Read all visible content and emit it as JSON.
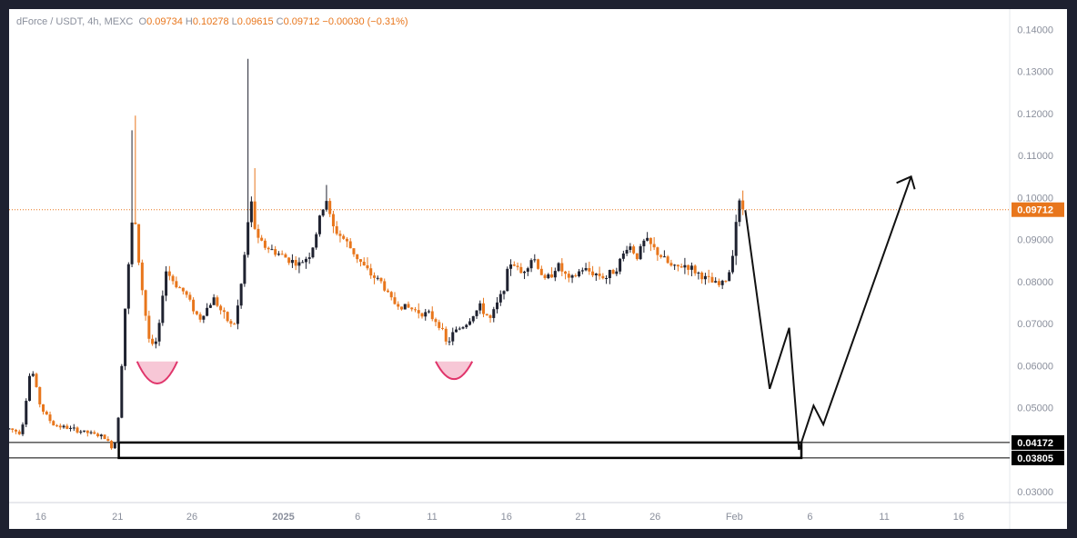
{
  "header": {
    "symbol": "dForce / USDT, 4h, MEXC",
    "o_label": "O",
    "o_value": "0.09734",
    "h_label": "H",
    "h_value": "0.10278",
    "l_label": "L",
    "l_value": "0.09615",
    "c_label": "C",
    "c_value": "0.09712",
    "change": "−0.00030 (−0.31%)"
  },
  "colors": {
    "up": "#1f2230",
    "down": "#e8761c",
    "current_line": "#e8761c",
    "arc": "#e0356b",
    "arc_fill": "#f7c7d6",
    "price_tag_current": "#e8761c",
    "price_tag_zone": "#000000",
    "axis_text": "#8a8f9c"
  },
  "chart_data": {
    "type": "candlestick",
    "title": "dForce / USDT, 4h, MEXC",
    "ylim": [
      0.027,
      0.145
    ],
    "y_ticks": [
      "0.14000",
      "0.13000",
      "0.12000",
      "0.11000",
      "0.10000",
      "0.09000",
      "0.08000",
      "0.07000",
      "0.06000",
      "0.05000",
      "0.03000"
    ],
    "x_ticks": [
      "16",
      "21",
      "26",
      "2025",
      "6",
      "11",
      "16",
      "21",
      "26",
      "Feb",
      "6",
      "11",
      "16"
    ],
    "current_price": "0.09712",
    "zone": {
      "top": "0.04172",
      "bottom": "0.03805"
    },
    "price_path": [
      {
        "d": 0,
        "p": 0.045
      },
      {
        "d": 1.0,
        "p": 0.044
      },
      {
        "d": 1.8,
        "p": 0.06
      },
      {
        "d": 2.6,
        "p": 0.05
      },
      {
        "d": 3.6,
        "p": 0.046
      },
      {
        "d": 5.0,
        "p": 0.045
      },
      {
        "d": 6.5,
        "p": 0.044
      },
      {
        "d": 7.8,
        "p": 0.043
      },
      {
        "d": 8.6,
        "p": 0.04
      },
      {
        "d": 9.0,
        "p": 0.049
      },
      {
        "d": 9.5,
        "p": 0.073
      },
      {
        "d": 10.2,
        "p": 0.098
      },
      {
        "d": 10.7,
        "p": 0.083
      },
      {
        "d": 11.2,
        "p": 0.072
      },
      {
        "d": 11.6,
        "p": 0.064
      },
      {
        "d": 12.2,
        "p": 0.066
      },
      {
        "d": 12.8,
        "p": 0.083
      },
      {
        "d": 13.5,
        "p": 0.08
      },
      {
        "d": 14.5,
        "p": 0.077
      },
      {
        "d": 15.6,
        "p": 0.071
      },
      {
        "d": 16.8,
        "p": 0.076
      },
      {
        "d": 17.6,
        "p": 0.072
      },
      {
        "d": 18.4,
        "p": 0.069
      },
      {
        "d": 18.9,
        "p": 0.076
      },
      {
        "d": 19.4,
        "p": 0.088
      },
      {
        "d": 19.8,
        "p": 0.1
      },
      {
        "d": 20.3,
        "p": 0.09
      },
      {
        "d": 21.2,
        "p": 0.088
      },
      {
        "d": 22.5,
        "p": 0.086
      },
      {
        "d": 23.8,
        "p": 0.084
      },
      {
        "d": 24.8,
        "p": 0.087
      },
      {
        "d": 25.5,
        "p": 0.095
      },
      {
        "d": 26.0,
        "p": 0.1
      },
      {
        "d": 26.5,
        "p": 0.093
      },
      {
        "d": 27.5,
        "p": 0.09
      },
      {
        "d": 28.5,
        "p": 0.086
      },
      {
        "d": 29.5,
        "p": 0.082
      },
      {
        "d": 30.5,
        "p": 0.08
      },
      {
        "d": 31.5,
        "p": 0.075
      },
      {
        "d": 32.5,
        "p": 0.074
      },
      {
        "d": 33.5,
        "p": 0.073
      },
      {
        "d": 34.5,
        "p": 0.072
      },
      {
        "d": 35.3,
        "p": 0.07
      },
      {
        "d": 35.9,
        "p": 0.065
      },
      {
        "d": 36.5,
        "p": 0.068
      },
      {
        "d": 37.5,
        "p": 0.07
      },
      {
        "d": 38.6,
        "p": 0.074
      },
      {
        "d": 39.5,
        "p": 0.071
      },
      {
        "d": 40.4,
        "p": 0.077
      },
      {
        "d": 41.2,
        "p": 0.085
      },
      {
        "d": 42.0,
        "p": 0.082
      },
      {
        "d": 43.0,
        "p": 0.086
      },
      {
        "d": 44.0,
        "p": 0.08
      },
      {
        "d": 45.0,
        "p": 0.084
      },
      {
        "d": 46.0,
        "p": 0.08
      },
      {
        "d": 47.0,
        "p": 0.083
      },
      {
        "d": 48.0,
        "p": 0.082
      },
      {
        "d": 49.0,
        "p": 0.081
      },
      {
        "d": 50.0,
        "p": 0.084
      },
      {
        "d": 50.8,
        "p": 0.089
      },
      {
        "d": 51.5,
        "p": 0.086
      },
      {
        "d": 52.2,
        "p": 0.09
      },
      {
        "d": 52.8,
        "p": 0.088
      },
      {
        "d": 53.5,
        "p": 0.086
      },
      {
        "d": 54.5,
        "p": 0.083
      },
      {
        "d": 55.5,
        "p": 0.084
      },
      {
        "d": 56.5,
        "p": 0.082
      },
      {
        "d": 57.5,
        "p": 0.08
      },
      {
        "d": 58.3,
        "p": 0.079
      },
      {
        "d": 59.0,
        "p": 0.081
      },
      {
        "d": 59.4,
        "p": 0.088
      },
      {
        "d": 59.8,
        "p": 0.099
      },
      {
        "d": 60.3,
        "p": 0.0971
      }
    ],
    "spikes": [
      {
        "d": 10.3,
        "high": 0.1195
      },
      {
        "d": 10.1,
        "high": 0.116
      },
      {
        "d": 19.6,
        "high": 0.133
      },
      {
        "d": 20.1,
        "high": 0.107
      },
      {
        "d": 26.0,
        "high": 0.103
      },
      {
        "d": 60.5,
        "high": 0.1028
      }
    ],
    "arcs": [
      {
        "d_start": 10.5,
        "d_end": 13.8,
        "top": 0.061,
        "bottom": 0.056
      },
      {
        "d_start": 35.0,
        "d_end": 38.0,
        "top": 0.061,
        "bottom": 0.057
      }
    ],
    "projection": [
      {
        "d": 60.4,
        "p": 0.097
      },
      {
        "d": 62.4,
        "p": 0.0545
      },
      {
        "d": 64.0,
        "p": 0.069
      },
      {
        "d": 64.8,
        "p": 0.04
      },
      {
        "d": 66.0,
        "p": 0.0505
      },
      {
        "d": 66.8,
        "p": 0.046
      },
      {
        "d": 74.0,
        "p": 0.105
      }
    ],
    "zone_span": {
      "d_start": 9.0,
      "d_end": 65.0
    }
  }
}
